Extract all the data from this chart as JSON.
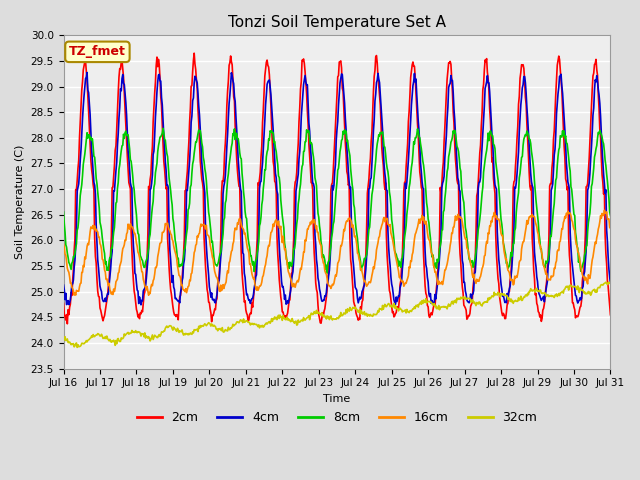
{
  "title": "Tonzi Soil Temperature Set A",
  "xlabel": "Time",
  "ylabel": "Soil Temperature (C)",
  "ylim": [
    23.5,
    30.0
  ],
  "xlim": [
    0,
    360
  ],
  "annotation": "TZ_fmet",
  "annotation_color": "#cc0000",
  "annotation_bg": "#ffffcc",
  "annotation_border": "#aa8800",
  "x_tick_labels": [
    "Jul 16",
    "Jul 17",
    "Jul 18",
    "Jul 19",
    "Jul 20",
    "Jul 21",
    "Jul 22",
    "Jul 23",
    "Jul 24",
    "Jul 25",
    "Jul 26",
    "Jul 27",
    "Jul 28",
    "Jul 29",
    "Jul 30",
    "Jul 31"
  ],
  "x_tick_positions": [
    0,
    24,
    48,
    72,
    96,
    120,
    144,
    168,
    192,
    216,
    240,
    264,
    288,
    312,
    336,
    360
  ],
  "series": [
    {
      "label": "2cm",
      "color": "#ff0000",
      "lw": 1.2
    },
    {
      "label": "4cm",
      "color": "#0000cc",
      "lw": 1.2
    },
    {
      "label": "8cm",
      "color": "#00cc00",
      "lw": 1.2
    },
    {
      "label": "16cm",
      "color": "#ff8800",
      "lw": 1.2
    },
    {
      "label": "32cm",
      "color": "#cccc00",
      "lw": 1.2
    }
  ],
  "bg_color": "#dddddd",
  "plot_bg": "#eeeeee",
  "grid_color": "#ffffff",
  "title_fontsize": 11,
  "label_fontsize": 8,
  "tick_fontsize": 7.5,
  "legend_fontsize": 9
}
